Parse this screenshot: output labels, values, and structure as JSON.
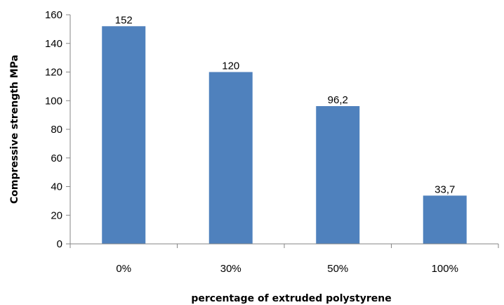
{
  "chart_data": {
    "type": "bar",
    "categories": [
      "0%",
      "30%",
      "50%",
      "100%"
    ],
    "values": [
      152,
      120,
      96.2,
      33.7
    ],
    "data_labels": [
      "152",
      "120",
      "96,2",
      "33,7"
    ],
    "title": "",
    "xlabel": "percentage of extruded polystyrene",
    "ylabel": "Compressive strength MPa",
    "ylim": [
      0,
      160
    ],
    "yticks": [
      0,
      20,
      40,
      60,
      80,
      100,
      120,
      140,
      160
    ],
    "ytick_labels": [
      "0",
      "20",
      "40",
      "60",
      "80",
      "100",
      "120",
      "140",
      "160"
    ],
    "grid": false,
    "legend": "none",
    "bar_color": "#4F81BD"
  }
}
